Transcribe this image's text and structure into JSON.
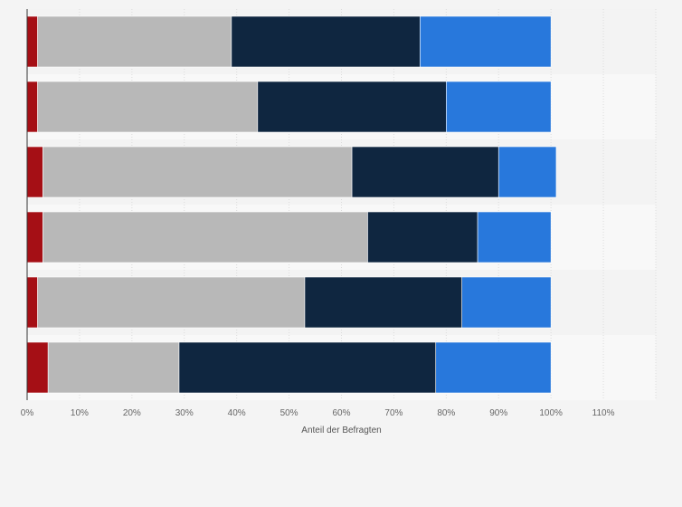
{
  "chart_data": {
    "type": "bar",
    "orientation": "horizontal",
    "stacked": true,
    "categories": [
      "",
      "",
      "",
      "",
      "",
      ""
    ],
    "series": [
      {
        "color": "#a50f15",
        "values": [
          2,
          2,
          3,
          3,
          2,
          4
        ]
      },
      {
        "color": "#b8b8b8",
        "values": [
          37,
          42,
          59,
          62,
          51,
          25
        ]
      },
      {
        "color": "#0f2640",
        "values": [
          36,
          36,
          28,
          21,
          30,
          49
        ]
      },
      {
        "color": "#2878dc",
        "values": [
          25,
          20,
          11,
          14,
          17,
          22
        ]
      }
    ],
    "xlabel": "Anteil der Befragten",
    "xlim": [
      0,
      120
    ],
    "xticks": [
      "0%",
      "10%",
      "20%",
      "30%",
      "40%",
      "50%",
      "60%",
      "70%",
      "80%",
      "90%",
      "100%",
      "110%"
    ],
    "grid": true,
    "legend": "none"
  }
}
